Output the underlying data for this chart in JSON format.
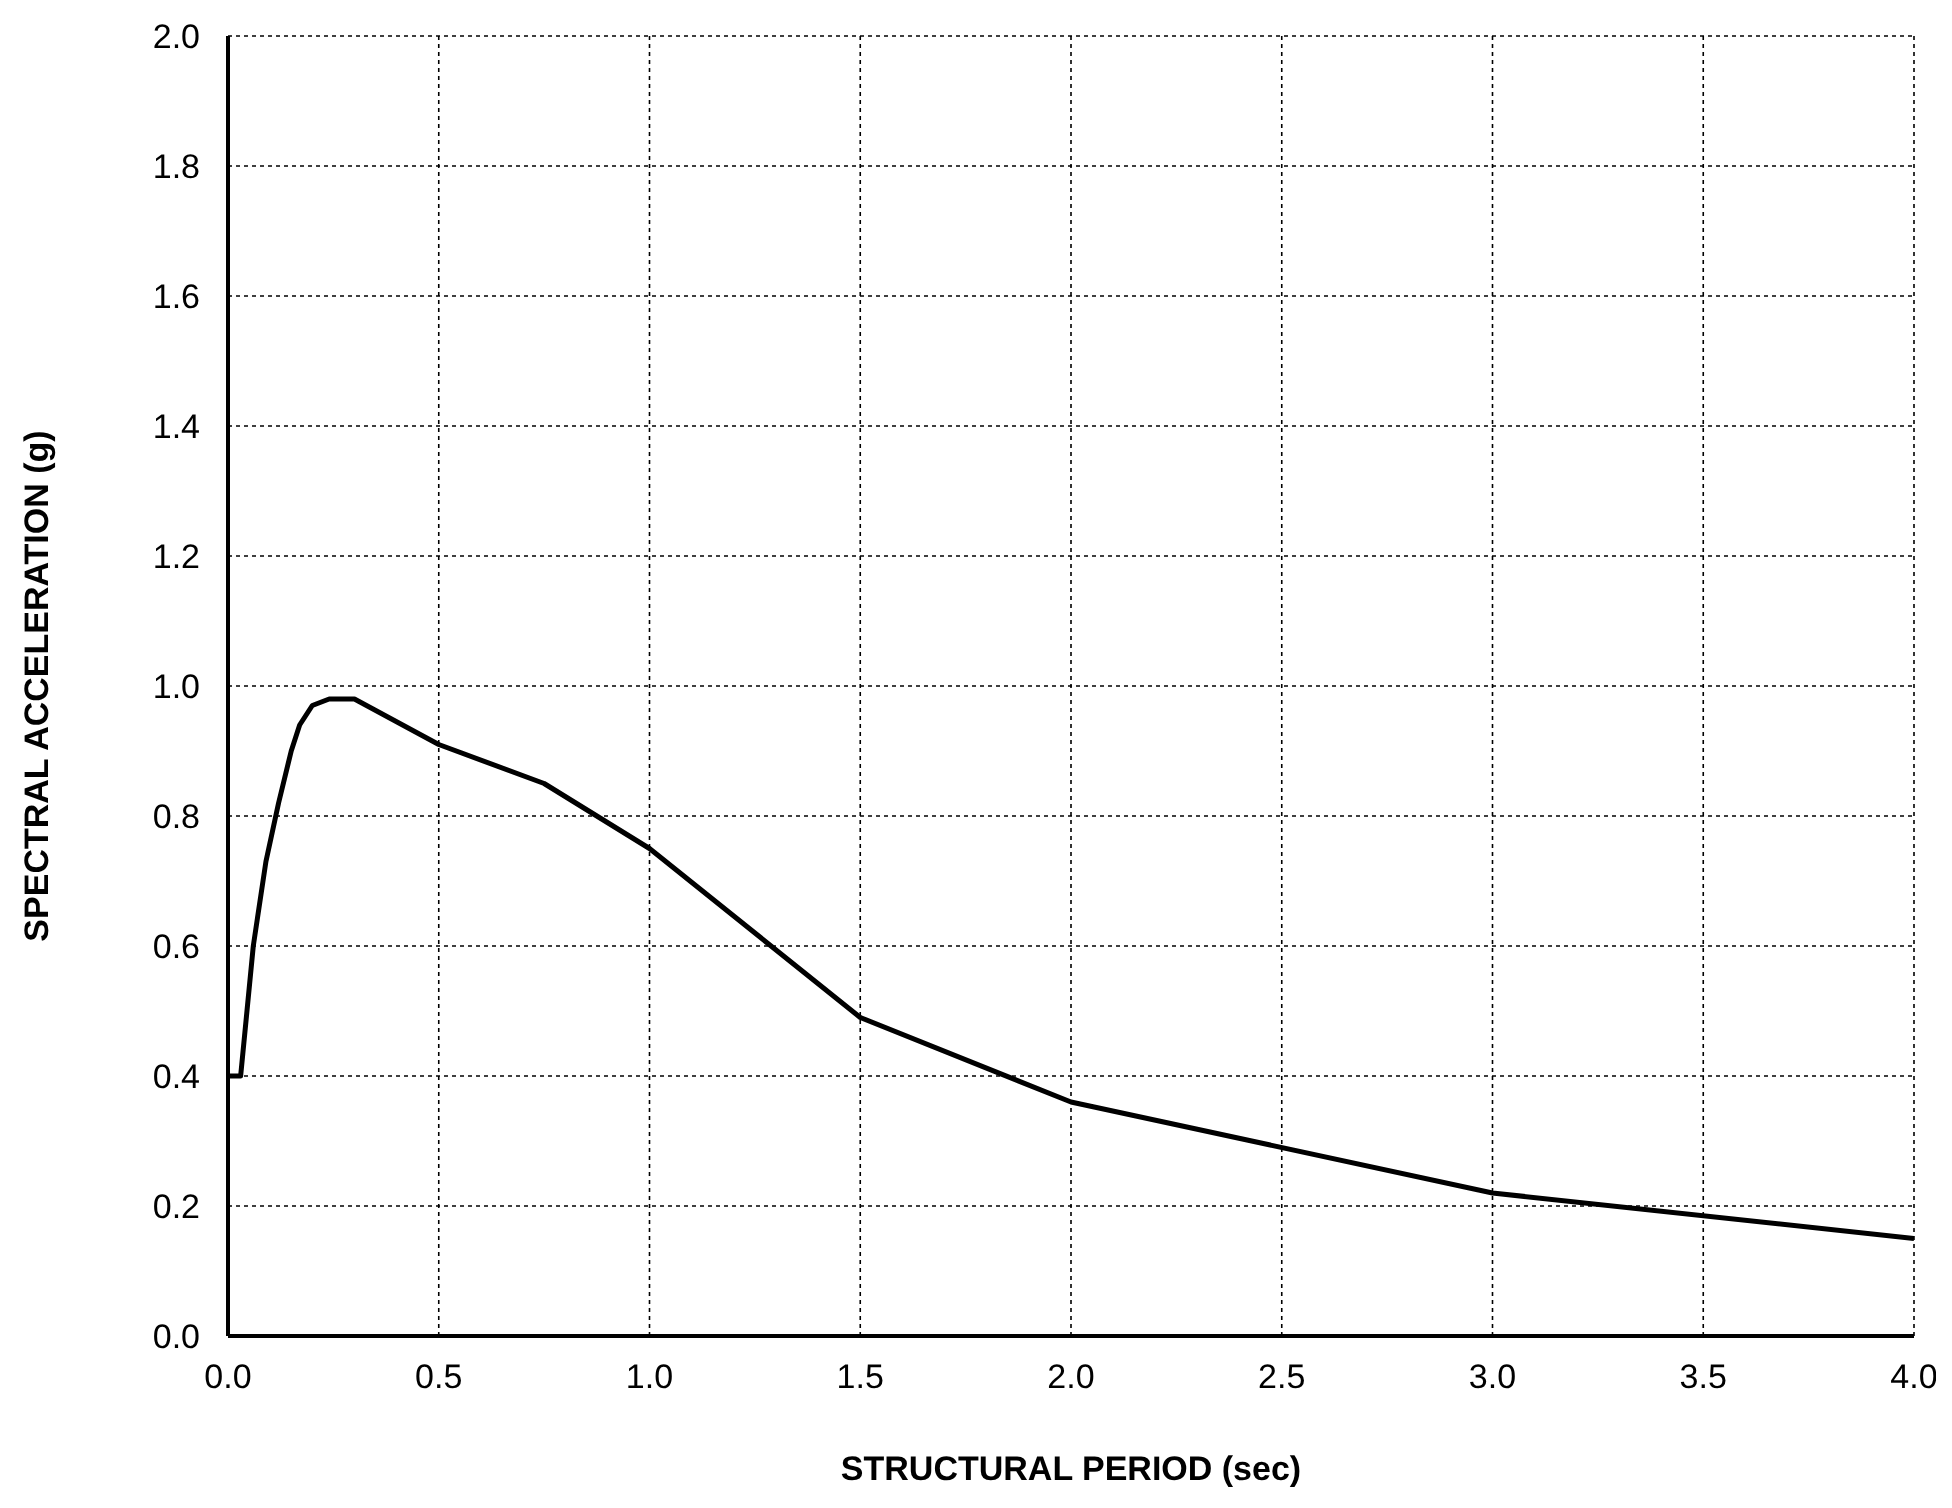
{
  "chart_data": {
    "type": "line",
    "xlabel": "STRUCTURAL PERIOD (sec)",
    "ylabel": "SPECTRAL ACCELERATION (g)",
    "x": [
      0,
      0.03,
      0.06,
      0.09,
      0.12,
      0.15,
      0.17,
      0.2,
      0.24,
      0.3,
      0.5,
      0.75,
      1.0,
      1.5,
      2.0,
      3.0,
      4.0
    ],
    "series": [
      {
        "color": "#000000",
        "values": [
          0.4,
          0.4,
          0.6,
          0.73,
          0.82,
          0.9,
          0.94,
          0.97,
          0.98,
          0.98,
          0.91,
          0.85,
          0.75,
          0.49,
          0.36,
          0.22,
          0.15
        ]
      }
    ],
    "xlim": [
      0,
      4
    ],
    "ylim": [
      0,
      2
    ],
    "xticks": [
      {
        "value": 0,
        "label": "0.0"
      },
      {
        "value": 0.5,
        "label": "0.5"
      },
      {
        "value": 1,
        "label": "1.0"
      },
      {
        "value": 1.5,
        "label": "1.5"
      },
      {
        "value": 2,
        "label": "2.0"
      },
      {
        "value": 2.5,
        "label": "2.5"
      },
      {
        "value": 3,
        "label": "3.0"
      },
      {
        "value": 3.5,
        "label": "3.5"
      },
      {
        "value": 4,
        "label": "4.0"
      }
    ],
    "yticks": [
      {
        "value": 0,
        "label": "0.0"
      },
      {
        "value": 0.2,
        "label": "0.2"
      },
      {
        "value": 0.4,
        "label": "0.4"
      },
      {
        "value": 0.6,
        "label": "0.6"
      },
      {
        "value": 0.8,
        "label": "0.8"
      },
      {
        "value": 1,
        "label": "1.0"
      },
      {
        "value": 1.2,
        "label": "1.2"
      },
      {
        "value": 1.4,
        "label": "1.4"
      },
      {
        "value": 1.6,
        "label": "1.6"
      },
      {
        "value": 1.8,
        "label": "1.8"
      },
      {
        "value": 2,
        "label": "2.0"
      }
    ],
    "grid": true
  }
}
